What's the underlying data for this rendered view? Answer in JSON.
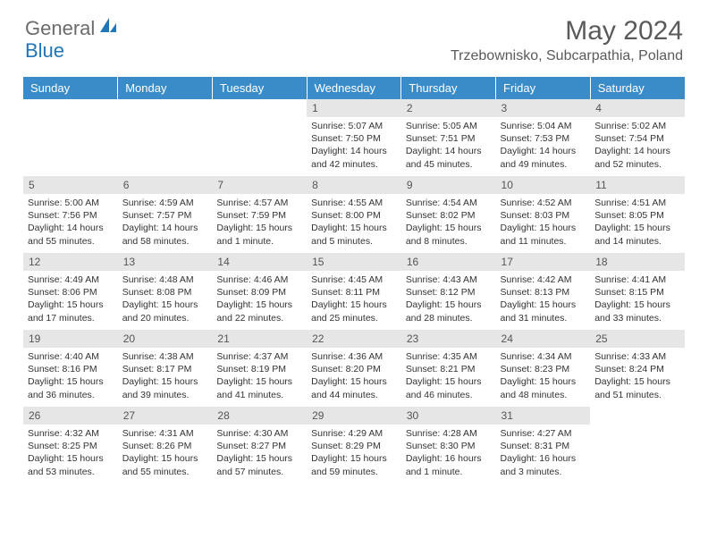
{
  "logo": {
    "word1": "General",
    "word2": "Blue"
  },
  "title": "May 2024",
  "location": "Trzebownisko, Subcarpathia, Poland",
  "colors": {
    "header_bg": "#3a8cc9",
    "header_text": "#ffffff",
    "daynum_bg": "#e6e6e6",
    "text": "#333333",
    "title_color": "#5a5a5a",
    "logo_gray": "#6b6b6b",
    "logo_blue": "#2176b8"
  },
  "daynames": [
    "Sunday",
    "Monday",
    "Tuesday",
    "Wednesday",
    "Thursday",
    "Friday",
    "Saturday"
  ],
  "weeks": [
    [
      null,
      null,
      null,
      {
        "n": "1",
        "sr": "5:07 AM",
        "ss": "7:50 PM",
        "dl": "14 hours and 42 minutes."
      },
      {
        "n": "2",
        "sr": "5:05 AM",
        "ss": "7:51 PM",
        "dl": "14 hours and 45 minutes."
      },
      {
        "n": "3",
        "sr": "5:04 AM",
        "ss": "7:53 PM",
        "dl": "14 hours and 49 minutes."
      },
      {
        "n": "4",
        "sr": "5:02 AM",
        "ss": "7:54 PM",
        "dl": "14 hours and 52 minutes."
      }
    ],
    [
      {
        "n": "5",
        "sr": "5:00 AM",
        "ss": "7:56 PM",
        "dl": "14 hours and 55 minutes."
      },
      {
        "n": "6",
        "sr": "4:59 AM",
        "ss": "7:57 PM",
        "dl": "14 hours and 58 minutes."
      },
      {
        "n": "7",
        "sr": "4:57 AM",
        "ss": "7:59 PM",
        "dl": "15 hours and 1 minute."
      },
      {
        "n": "8",
        "sr": "4:55 AM",
        "ss": "8:00 PM",
        "dl": "15 hours and 5 minutes."
      },
      {
        "n": "9",
        "sr": "4:54 AM",
        "ss": "8:02 PM",
        "dl": "15 hours and 8 minutes."
      },
      {
        "n": "10",
        "sr": "4:52 AM",
        "ss": "8:03 PM",
        "dl": "15 hours and 11 minutes."
      },
      {
        "n": "11",
        "sr": "4:51 AM",
        "ss": "8:05 PM",
        "dl": "15 hours and 14 minutes."
      }
    ],
    [
      {
        "n": "12",
        "sr": "4:49 AM",
        "ss": "8:06 PM",
        "dl": "15 hours and 17 minutes."
      },
      {
        "n": "13",
        "sr": "4:48 AM",
        "ss": "8:08 PM",
        "dl": "15 hours and 20 minutes."
      },
      {
        "n": "14",
        "sr": "4:46 AM",
        "ss": "8:09 PM",
        "dl": "15 hours and 22 minutes."
      },
      {
        "n": "15",
        "sr": "4:45 AM",
        "ss": "8:11 PM",
        "dl": "15 hours and 25 minutes."
      },
      {
        "n": "16",
        "sr": "4:43 AM",
        "ss": "8:12 PM",
        "dl": "15 hours and 28 minutes."
      },
      {
        "n": "17",
        "sr": "4:42 AM",
        "ss": "8:13 PM",
        "dl": "15 hours and 31 minutes."
      },
      {
        "n": "18",
        "sr": "4:41 AM",
        "ss": "8:15 PM",
        "dl": "15 hours and 33 minutes."
      }
    ],
    [
      {
        "n": "19",
        "sr": "4:40 AM",
        "ss": "8:16 PM",
        "dl": "15 hours and 36 minutes."
      },
      {
        "n": "20",
        "sr": "4:38 AM",
        "ss": "8:17 PM",
        "dl": "15 hours and 39 minutes."
      },
      {
        "n": "21",
        "sr": "4:37 AM",
        "ss": "8:19 PM",
        "dl": "15 hours and 41 minutes."
      },
      {
        "n": "22",
        "sr": "4:36 AM",
        "ss": "8:20 PM",
        "dl": "15 hours and 44 minutes."
      },
      {
        "n": "23",
        "sr": "4:35 AM",
        "ss": "8:21 PM",
        "dl": "15 hours and 46 minutes."
      },
      {
        "n": "24",
        "sr": "4:34 AM",
        "ss": "8:23 PM",
        "dl": "15 hours and 48 minutes."
      },
      {
        "n": "25",
        "sr": "4:33 AM",
        "ss": "8:24 PM",
        "dl": "15 hours and 51 minutes."
      }
    ],
    [
      {
        "n": "26",
        "sr": "4:32 AM",
        "ss": "8:25 PM",
        "dl": "15 hours and 53 minutes."
      },
      {
        "n": "27",
        "sr": "4:31 AM",
        "ss": "8:26 PM",
        "dl": "15 hours and 55 minutes."
      },
      {
        "n": "28",
        "sr": "4:30 AM",
        "ss": "8:27 PM",
        "dl": "15 hours and 57 minutes."
      },
      {
        "n": "29",
        "sr": "4:29 AM",
        "ss": "8:29 PM",
        "dl": "15 hours and 59 minutes."
      },
      {
        "n": "30",
        "sr": "4:28 AM",
        "ss": "8:30 PM",
        "dl": "16 hours and 1 minute."
      },
      {
        "n": "31",
        "sr": "4:27 AM",
        "ss": "8:31 PM",
        "dl": "16 hours and 3 minutes."
      },
      null
    ]
  ],
  "labels": {
    "sunrise": "Sunrise:",
    "sunset": "Sunset:",
    "daylight": "Daylight:"
  }
}
